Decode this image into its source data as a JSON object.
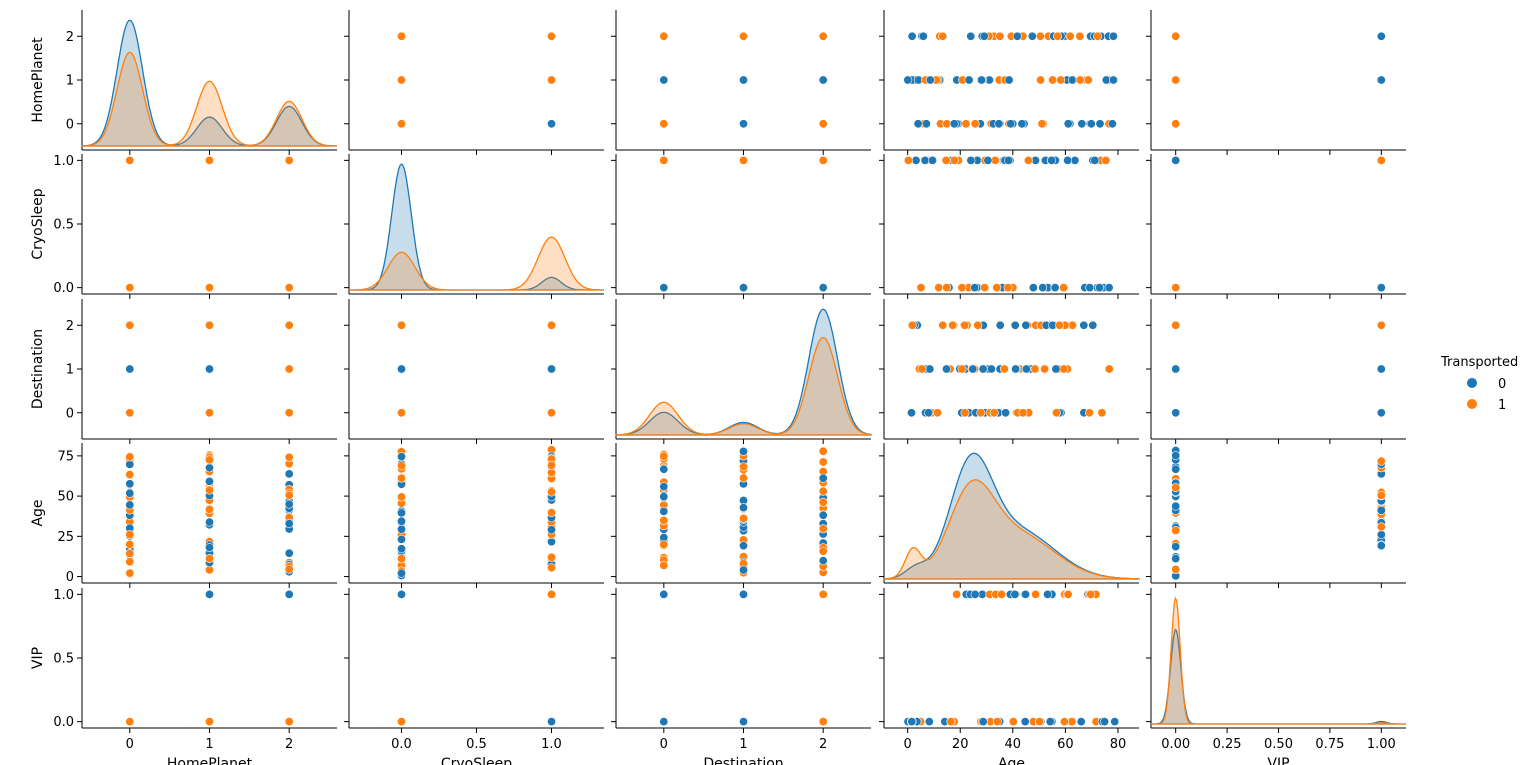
{
  "chart_data": {
    "type": "scatter",
    "subtype": "pairplot",
    "variables": [
      "HomePlanet",
      "CryoSleep",
      "Destination",
      "Age",
      "VIP"
    ],
    "hue": "Transported",
    "legend": {
      "title": "Transported",
      "placement": "right",
      "entries": [
        {
          "label": "0",
          "color": "#1f77b4"
        },
        {
          "label": "1",
          "color": "#ff7f0e"
        }
      ]
    },
    "axes": {
      "HomePlanet": {
        "range": [
          -0.6,
          2.6
        ],
        "ticks": [
          0,
          1,
          2
        ],
        "tick_labels": [
          "0",
          "1",
          "2"
        ]
      },
      "CryoSleep": {
        "range": [
          -0.35,
          1.35
        ],
        "xticks": [
          0.0,
          0.5,
          1.0
        ],
        "xtick_labels": [
          "0.0",
          "0.5",
          "1.0"
        ],
        "yrange": [
          -0.05,
          1.05
        ],
        "yticks": [
          0.0,
          0.5,
          1.0
        ],
        "ytick_labels": [
          "0.0",
          "0.5",
          "1.0"
        ]
      },
      "Destination": {
        "range": [
          -0.6,
          2.6
        ],
        "ticks": [
          0,
          1,
          2
        ],
        "tick_labels": [
          "0",
          "1",
          "2"
        ]
      },
      "Age": {
        "range": [
          -9,
          88
        ],
        "xticks": [
          0,
          20,
          40,
          60,
          80
        ],
        "xtick_labels": [
          "0",
          "20",
          "40",
          "60",
          "80"
        ],
        "yrange": [
          -4,
          83
        ],
        "yticks": [
          0,
          25,
          50,
          75
        ],
        "ytick_labels": [
          "0",
          "25",
          "50",
          "75"
        ]
      },
      "VIP": {
        "range": [
          -0.12,
          1.12
        ],
        "xticks": [
          0.0,
          0.25,
          0.5,
          0.75,
          1.0
        ],
        "xtick_labels": [
          "0.00",
          "0.25",
          "0.50",
          "0.75",
          "1.00"
        ],
        "yrange": [
          -0.05,
          1.05
        ],
        "yticks": [
          0.0,
          0.5,
          1.0
        ],
        "ytick_labels": [
          "0.0",
          "0.5",
          "1.0"
        ]
      }
    },
    "category_points": {
      "HomePlanet": {
        "CryoSleep": {
          "0": [
            [
              0,
              1
            ],
            [
              1,
              1
            ],
            [
              2,
              1
            ]
          ],
          "1": [
            [
              0,
              0
            ],
            [
              1,
              0
            ],
            [
              2,
              0
            ],
            [
              0,
              1
            ],
            [
              1,
              1
            ],
            [
              2,
              1
            ]
          ]
        },
        "Destination": {
          "0": [
            [
              0,
              1
            ],
            [
              1,
              1
            ],
            [
              2,
              1
            ],
            [
              1,
              0
            ]
          ],
          "1": [
            [
              0,
              0
            ],
            [
              1,
              0
            ],
            [
              2,
              0
            ],
            [
              0,
              2
            ],
            [
              1,
              2
            ],
            [
              2,
              2
            ],
            [
              2,
              1
            ]
          ]
        },
        "VIP": {
          "0": [
            [
              1,
              1
            ],
            [
              2,
              1
            ]
          ],
          "1": [
            [
              0,
              0
            ],
            [
              1,
              0
            ],
            [
              2,
              0
            ]
          ]
        }
      },
      "CryoSleep": {
        "HomePlanet": {
          "0": [
            [
              0,
              2
            ],
            [
              0,
              1
            ],
            [
              1,
              0
            ]
          ],
          "1": [
            [
              0,
              0
            ],
            [
              1,
              1
            ],
            [
              1,
              2
            ],
            [
              0,
              1
            ],
            [
              0,
              2
            ]
          ]
        },
        "Destination": {
          "0": [
            [
              0,
              1
            ],
            [
              1,
              1
            ],
            [
              0,
              0
            ]
          ],
          "1": [
            [
              0,
              2
            ],
            [
              1,
              2
            ],
            [
              0,
              0
            ],
            [
              1,
              0
            ]
          ]
        },
        "VIP": {
          "0": [
            [
              0,
              1
            ],
            [
              1,
              0
            ]
          ],
          "1": [
            [
              0,
              0
            ],
            [
              1,
              1
            ]
          ]
        }
      },
      "Destination": {
        "HomePlanet": {
          "0": [
            [
              0,
              1
            ],
            [
              1,
              1
            ],
            [
              2,
              1
            ],
            [
              1,
              0
            ]
          ],
          "1": [
            [
              0,
              2
            ],
            [
              1,
              2
            ],
            [
              2,
              2
            ],
            [
              0,
              0
            ],
            [
              2,
              0
            ]
          ]
        },
        "CryoSleep": {
          "0": [
            [
              0,
              0
            ],
            [
              1,
              0
            ],
            [
              2,
              0
            ]
          ],
          "1": [
            [
              0,
              1
            ],
            [
              1,
              1
            ],
            [
              2,
              1
            ]
          ]
        },
        "VIP": {
          "0": [
            [
              0,
              1
            ],
            [
              1,
              1
            ],
            [
              0,
              0
            ],
            [
              1,
              0
            ]
          ],
          "1": [
            [
              2,
              1
            ],
            [
              2,
              0
            ]
          ]
        }
      },
      "VIP": {
        "HomePlanet": {
          "0": [
            [
              1,
              2
            ],
            [
              1,
              1
            ]
          ],
          "1": [
            [
              0,
              2
            ],
            [
              0,
              1
            ],
            [
              0,
              0
            ]
          ]
        },
        "CryoSleep": {
          "0": [
            [
              0,
              1
            ],
            [
              1,
              0
            ]
          ],
          "1": [
            [
              0,
              0
            ],
            [
              1,
              1
            ]
          ]
        },
        "Destination": {
          "0": [
            [
              0,
              1
            ],
            [
              1,
              1
            ],
            [
              0,
              0
            ],
            [
              1,
              0
            ]
          ],
          "1": [
            [
              0,
              2
            ],
            [
              1,
              2
            ]
          ]
        }
      }
    },
    "age_category_points": {
      "HomePlanet": {
        "0": [
          [
            0,
            [
              0,
              1,
              2
            ]
          ],
          [
            1,
            [
              0,
              1,
              2
            ]
          ],
          [
            2,
            [
              0,
              1,
              2
            ]
          ]
        ],
        "1": [
          [
            0,
            [
              0,
              1,
              2
            ]
          ],
          [
            1,
            [
              0,
              1,
              2
            ]
          ],
          [
            2,
            [
              0,
              1,
              2
            ]
          ]
        ]
      },
      "CryoSleep": {
        "0": [
          [
            0,
            [
              0,
              1
            ]
          ],
          [
            1,
            [
              0,
              1
            ]
          ]
        ],
        "1": [
          [
            0,
            [
              0,
              1
            ]
          ],
          [
            1,
            [
              0,
              1
            ]
          ]
        ]
      },
      "Destination": {
        "0": [
          [
            0,
            [
              0,
              1,
              2
            ]
          ],
          [
            1,
            [
              0,
              1,
              2
            ]
          ],
          [
            2,
            [
              0,
              1,
              2
            ]
          ]
        ],
        "1": [
          [
            0,
            [
              0,
              1,
              2
            ]
          ],
          [
            1,
            [
              0,
              1,
              2
            ]
          ],
          [
            2,
            [
              0,
              1,
              2
            ]
          ]
        ]
      },
      "VIP": {
        "0": [
          [
            0,
            [
              0
            ]
          ],
          [
            1,
            [
              0
            ]
          ]
        ],
        "1": [
          [
            1,
            [
              0
            ]
          ],
          [
            0,
            [
              0
            ]
          ]
        ]
      }
    },
    "kde": {
      "HomePlanet": {
        "0": [
          {
            "mean": 0,
            "sd": 0.16,
            "peak": 2.0
          },
          {
            "mean": 1,
            "sd": 0.16,
            "peak": 0.46
          },
          {
            "mean": 2,
            "sd": 0.16,
            "peak": 0.63
          }
        ],
        "1": [
          {
            "mean": 0,
            "sd": 0.16,
            "peak": 1.49
          },
          {
            "mean": 1,
            "sd": 0.16,
            "peak": 1.03
          },
          {
            "mean": 2,
            "sd": 0.16,
            "peak": 0.71
          }
        ]
      },
      "CryoSleep": {
        "0": [
          {
            "mean": 0,
            "sd": 0.065,
            "peak": 1.0
          },
          {
            "mean": 1,
            "sd": 0.065,
            "peak": 0.1
          }
        ],
        "1": [
          {
            "mean": 0,
            "sd": 0.09,
            "peak": 0.3
          },
          {
            "mean": 1,
            "sd": 0.09,
            "peak": 0.42
          }
        ]
      },
      "Destination": {
        "0": [
          {
            "mean": 0,
            "sd": 0.18,
            "peak": 0.36
          },
          {
            "mean": 1,
            "sd": 0.18,
            "peak": 0.2
          },
          {
            "mean": 2,
            "sd": 0.18,
            "peak": 2.0
          }
        ],
        "1": [
          {
            "mean": 0,
            "sd": 0.18,
            "peak": 0.52
          },
          {
            "mean": 1,
            "sd": 0.18,
            "peak": 0.18
          },
          {
            "mean": 2,
            "sd": 0.18,
            "peak": 1.55
          }
        ]
      },
      "Age": {
        "0": [
          {
            "mean": 3,
            "sd": 4,
            "peak": 0.08
          },
          {
            "mean": 24,
            "sd": 8,
            "peak": 0.82
          },
          {
            "mean": 42,
            "sd": 14,
            "peak": 0.38
          }
        ],
        "1": [
          {
            "mean": 2,
            "sd": 3,
            "peak": 0.22
          },
          {
            "mean": 24,
            "sd": 8.5,
            "peak": 0.62
          },
          {
            "mean": 42,
            "sd": 14,
            "peak": 0.35
          }
        ]
      },
      "VIP": {
        "0": [
          {
            "mean": 0,
            "sd": 0.025,
            "peak": 0.75
          },
          {
            "mean": 1,
            "sd": 0.025,
            "peak": 0.02
          }
        ],
        "1": [
          {
            "mean": 0,
            "sd": 0.022,
            "peak": 1.0
          },
          {
            "mean": 1,
            "sd": 0.022,
            "peak": 0.01
          }
        ]
      }
    }
  }
}
